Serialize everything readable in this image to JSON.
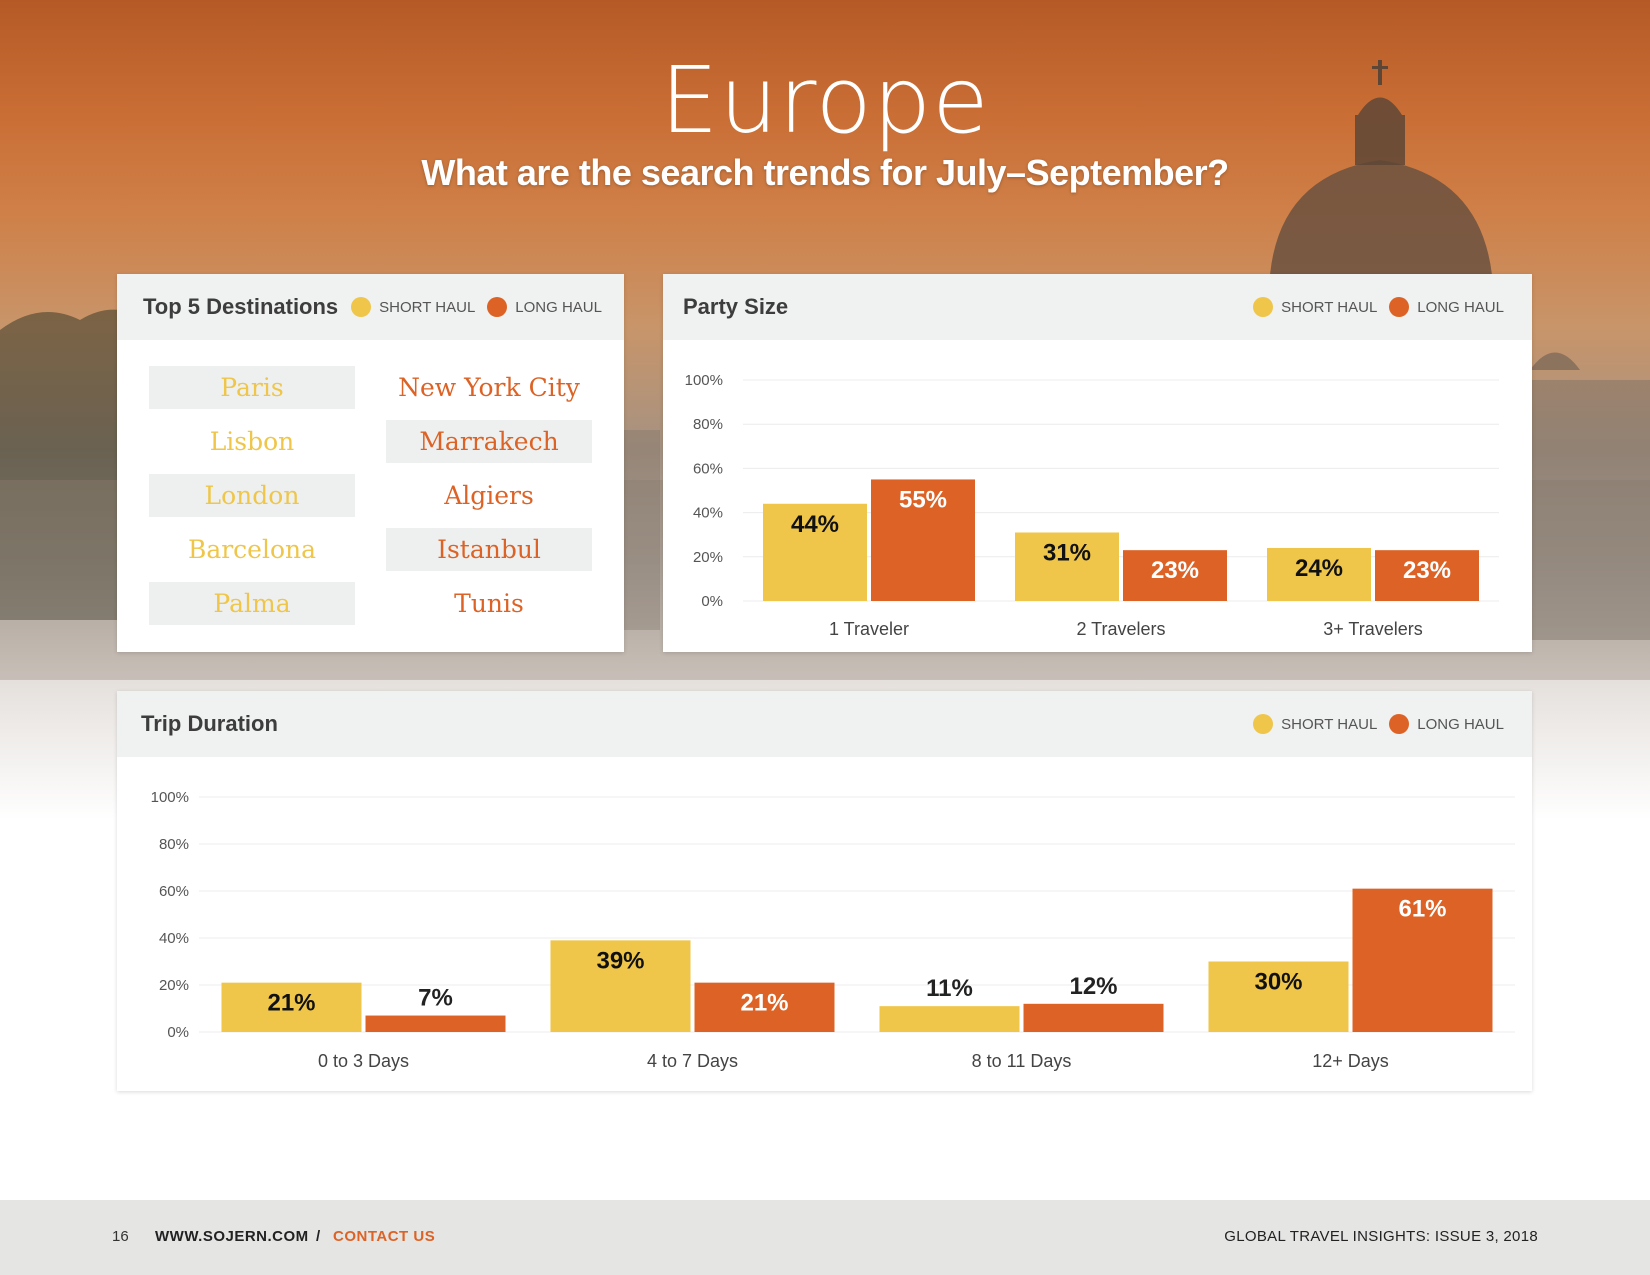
{
  "header": {
    "title": "Europe",
    "subtitle": "What are the search trends for July–September?"
  },
  "legend": {
    "short_haul": "SHORT HAUL",
    "long_haul": "LONG HAUL"
  },
  "colors": {
    "short_haul": "#efc64a",
    "long_haul": "#dc6325"
  },
  "destinations": {
    "title": "Top 5 Destinations",
    "short_haul": [
      "Paris",
      "Lisbon",
      "London",
      "Barcelona",
      "Palma"
    ],
    "long_haul": [
      "New York City",
      "Marrakech",
      "Algiers",
      "Istanbul",
      "Tunis"
    ]
  },
  "chart_data": [
    {
      "type": "bar",
      "title": "Party Size",
      "categories": [
        "1 Traveler",
        "2 Travelers",
        "3+ Travelers"
      ],
      "series": [
        {
          "name": "SHORT HAUL",
          "values": [
            44,
            31,
            24
          ]
        },
        {
          "name": "LONG HAUL",
          "values": [
            55,
            23,
            23
          ]
        }
      ],
      "data_labels": [
        [
          "44%",
          "31%",
          "24%"
        ],
        [
          "55%",
          "23%",
          "23%"
        ]
      ],
      "yticks": [
        "0%",
        "20%",
        "40%",
        "60%",
        "80%",
        "100%"
      ],
      "ylim": [
        0,
        100
      ],
      "grid": true,
      "legend_position": "top-right"
    },
    {
      "type": "bar",
      "title": "Trip Duration",
      "categories": [
        "0 to 3 Days",
        "4 to 7 Days",
        "8 to 11 Days",
        "12+ Days"
      ],
      "series": [
        {
          "name": "SHORT HAUL",
          "values": [
            21,
            39,
            11,
            30
          ]
        },
        {
          "name": "LONG HAUL",
          "values": [
            7,
            21,
            12,
            61
          ]
        }
      ],
      "data_labels": [
        [
          "21%",
          "39%",
          "11%",
          "30%"
        ],
        [
          "7%",
          "21%",
          "12%",
          "61%"
        ]
      ],
      "yticks": [
        "0%",
        "20%",
        "40%",
        "60%",
        "80%",
        "100%"
      ],
      "ylim": [
        0,
        100
      ],
      "grid": true,
      "legend_position": "top-right"
    }
  ],
  "footer": {
    "page_number": "16",
    "website": "WWW.SOJERN.COM",
    "separator": "/",
    "contact": "CONTACT US",
    "issue": "GLOBAL TRAVEL INSIGHTS: ISSUE 3, 2018"
  }
}
